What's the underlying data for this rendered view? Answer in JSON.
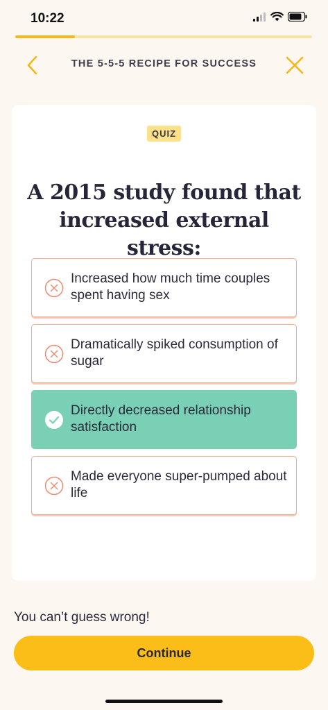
{
  "status": {
    "time": "10:22",
    "icons": [
      "cellular-signal-icon",
      "wifi-icon",
      "battery-icon"
    ]
  },
  "progress": {
    "fraction": 0.2
  },
  "header": {
    "title": "THE 5-5-5 RECIPE FOR SUCCESS",
    "back_icon": "chevron-left-icon",
    "close_icon": "close-icon"
  },
  "quiz": {
    "badge": "QUIZ",
    "question": "A 2015 study found that increased external stress:",
    "options": [
      {
        "label": "Increased how much time couples spent having sex",
        "state": "incorrect",
        "icon": "x-circle-icon"
      },
      {
        "label": "Dramatically spiked consumption of sugar",
        "state": "incorrect",
        "icon": "x-circle-icon"
      },
      {
        "label": "Directly decreased relationship satisfaction",
        "state": "correct",
        "icon": "check-circle-icon"
      },
      {
        "label": "Made everyone super-pumped about life",
        "state": "incorrect",
        "icon": "x-circle-icon"
      }
    ]
  },
  "footer": {
    "hint": "You can’t guess wrong!",
    "continue_label": "Continue"
  },
  "colors": {
    "background": "#fdf7f1",
    "accent": "#fbbd17",
    "correct": "#79d0b4",
    "incorrect_border": "#f2a98c",
    "badge": "#fde08a"
  }
}
